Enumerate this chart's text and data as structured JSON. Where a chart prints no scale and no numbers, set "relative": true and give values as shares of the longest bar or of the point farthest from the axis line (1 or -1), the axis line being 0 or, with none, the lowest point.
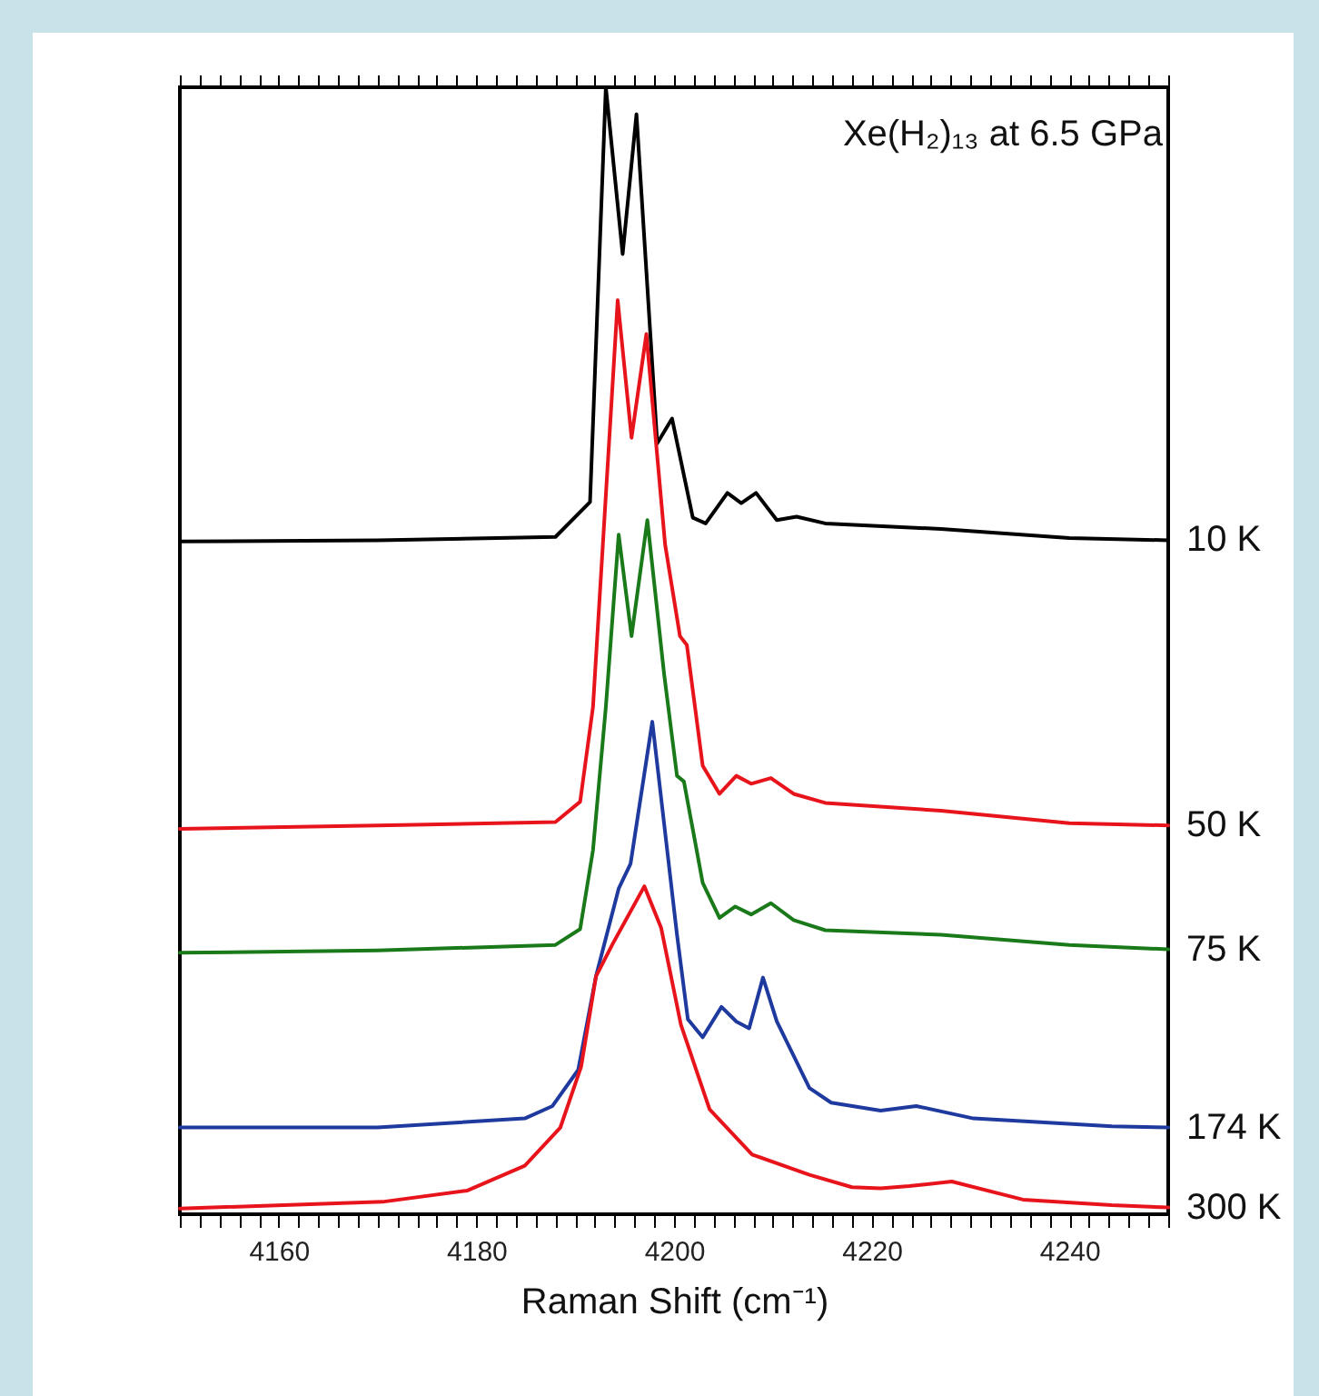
{
  "chart_data": {
    "type": "line",
    "relative": true,
    "xlabel": "Raman Shift (cm⁻¹)",
    "annotations": [
      "Xe(H₂)₁₃  at 6.5 GPa"
    ],
    "xlim": [
      4150,
      4250
    ],
    "xticks": [
      {
        "value": 4150,
        "label": null
      },
      {
        "value": 4152,
        "label": null
      },
      {
        "value": 4154,
        "label": null
      },
      {
        "value": 4156,
        "label": null
      },
      {
        "value": 4158,
        "label": null
      },
      4160,
      {
        "value": 4162,
        "label": null
      },
      {
        "value": 4164,
        "label": null
      },
      {
        "value": 4166,
        "label": null
      },
      {
        "value": 4168,
        "label": null
      },
      {
        "value": 4170,
        "label": null
      },
      {
        "value": 4172,
        "label": null
      },
      {
        "value": 4174,
        "label": null
      },
      {
        "value": 4176,
        "label": null
      },
      {
        "value": 4178,
        "label": null
      },
      4180,
      {
        "value": 4182,
        "label": null
      },
      {
        "value": 4184,
        "label": null
      },
      {
        "value": 4186,
        "label": null
      },
      {
        "value": 4188,
        "label": null
      },
      {
        "value": 4190,
        "label": null
      },
      {
        "value": 4192,
        "label": null
      },
      {
        "value": 4194,
        "label": null
      },
      {
        "value": 4196,
        "label": null
      },
      {
        "value": 4198,
        "label": null
      },
      4200,
      {
        "value": 4202,
        "label": null
      },
      {
        "value": 4204,
        "label": null
      },
      {
        "value": 4206,
        "label": null
      },
      {
        "value": 4208,
        "label": null
      },
      {
        "value": 4210,
        "label": null
      },
      {
        "value": 4212,
        "label": null
      },
      {
        "value": 4214,
        "label": null
      },
      {
        "value": 4216,
        "label": null
      },
      {
        "value": 4218,
        "label": null
      },
      4220,
      {
        "value": 4222,
        "label": null
      },
      {
        "value": 4224,
        "label": null
      },
      {
        "value": 4226,
        "label": null
      },
      {
        "value": 4228,
        "label": null
      },
      {
        "value": 4230,
        "label": null
      },
      {
        "value": 4232,
        "label": null
      },
      {
        "value": 4234,
        "label": null
      },
      {
        "value": 4236,
        "label": null
      },
      {
        "value": 4238,
        "label": null
      },
      4240,
      {
        "value": 4242,
        "label": null
      },
      {
        "value": 4244,
        "label": null
      },
      {
        "value": 4246,
        "label": null
      },
      {
        "value": 4248,
        "label": null
      },
      {
        "value": 4250,
        "label": null
      }
    ],
    "series": [
      {
        "name": "10 K",
        "color": "#000000",
        "x": [
          4150,
          4170,
          4188,
          4191.5,
          4193.1,
          4194.8,
          4196.2,
          4198.3,
          4199.8,
          4201.9,
          4203.2,
          4205.4,
          4206.8,
          4208.3,
          4210.4,
          4212.4,
          4215.3,
          4227,
          4240,
          4250
        ],
        "values": [
          0.597,
          0.598,
          0.601,
          0.632,
          1.0,
          0.852,
          0.976,
          0.684,
          0.706,
          0.618,
          0.613,
          0.64,
          0.631,
          0.64,
          0.616,
          0.619,
          0.613,
          0.608,
          0.6,
          0.598
        ]
      },
      {
        "name": "50 K",
        "color": "#e8141c",
        "x": [
          4150,
          4170,
          4188,
          4190.5,
          4191.8,
          4194.3,
          4195.7,
          4197.2,
          4199.1,
          4200.6,
          4201.3,
          4202.9,
          4204.6,
          4206.3,
          4207.8,
          4209.8,
          4212.1,
          4215.3,
          4227,
          4240,
          4250
        ],
        "values": [
          0.342,
          0.345,
          0.348,
          0.366,
          0.45,
          0.811,
          0.689,
          0.781,
          0.594,
          0.513,
          0.505,
          0.398,
          0.373,
          0.389,
          0.382,
          0.387,
          0.373,
          0.365,
          0.358,
          0.347,
          0.345
        ]
      },
      {
        "name": "75 K",
        "color": "#1a7a1a",
        "x": [
          4150,
          4170,
          4188,
          4190.5,
          4191.8,
          4193.1,
          4194.4,
          4195.7,
          4197.3,
          4199,
          4200.3,
          4201,
          4202.9,
          4204.6,
          4206.2,
          4207.8,
          4209.8,
          4212.1,
          4215.3,
          4227,
          4240,
          4250
        ],
        "values": [
          0.232,
          0.234,
          0.239,
          0.253,
          0.323,
          0.45,
          0.603,
          0.513,
          0.616,
          0.479,
          0.389,
          0.384,
          0.294,
          0.263,
          0.273,
          0.266,
          0.276,
          0.261,
          0.252,
          0.248,
          0.239,
          0.235
        ]
      },
      {
        "name": "174 K",
        "color": "#1f3a9e",
        "x": [
          4150,
          4170,
          4184.9,
          4187.7,
          4190.3,
          4192.1,
          4194.4,
          4195.6,
          4197.8,
          4200.3,
          4201.4,
          4202.9,
          4204.8,
          4206.3,
          4207.6,
          4209,
          4210.4,
          4213.7,
          4215.9,
          4220.9,
          4224.5,
          4230.3,
          4244.3,
          4250
        ],
        "values": [
          0.077,
          0.077,
          0.085,
          0.096,
          0.128,
          0.211,
          0.289,
          0.311,
          0.437,
          0.248,
          0.173,
          0.157,
          0.184,
          0.171,
          0.165,
          0.21,
          0.171,
          0.112,
          0.099,
          0.092,
          0.096,
          0.085,
          0.078,
          0.077
        ]
      },
      {
        "name": "300 K",
        "color": "#e8141c",
        "x": [
          4150,
          4170.5,
          4179.1,
          4184.9,
          4188.5,
          4190.6,
          4192.1,
          4193.8,
          4197,
          4198.7,
          4200.7,
          4203.6,
          4207.9,
          4213.7,
          4218,
          4220.9,
          4223.8,
          4228.1,
          4235.3,
          4244.3,
          4250
        ],
        "values": [
          0.005,
          0.011,
          0.021,
          0.043,
          0.077,
          0.131,
          0.211,
          0.24,
          0.291,
          0.254,
          0.168,
          0.093,
          0.053,
          0.035,
          0.024,
          0.023,
          0.025,
          0.029,
          0.013,
          0.008,
          0.006
        ]
      }
    ]
  }
}
